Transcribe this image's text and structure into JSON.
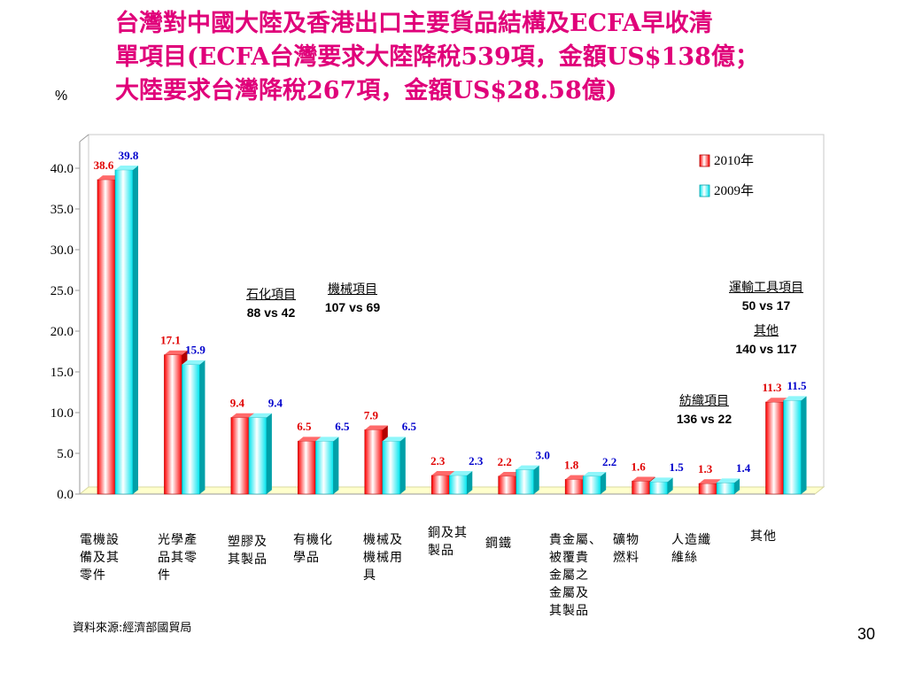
{
  "title_lines": [
    "台灣對中國大陸及香港出口主要貨品結構及ECFA早收清",
    "單項目(ECFA台灣要求大陸降稅539項，金額US$138億；",
    "大陸要求台灣降稅267項，金額US$28.58億)"
  ],
  "unit_label": "%",
  "source": "資料來源:經濟部國貿局",
  "page_number": "30",
  "annotations": [
    {
      "label": "石化項目",
      "value": "88 vs 42"
    },
    {
      "label": "機械項目",
      "value": "107 vs 69"
    },
    {
      "label": "運輸工具項目",
      "value": "50 vs 17"
    },
    {
      "label": "其他",
      "value": "140 vs 117"
    },
    {
      "label": "紡織項目",
      "value": "136 vs 22"
    }
  ],
  "colors": {
    "title": "#e0007a",
    "series_2010": "#ff0000",
    "series_2009": "#00e5ee",
    "label_2010": "#e00000",
    "label_2009": "#0000cc",
    "floor": "#ffffcc"
  },
  "chart_data": {
    "type": "bar",
    "categories": [
      "電機設\n備及其\n零件",
      "光學產\n品其零\n件",
      "塑膠及\n其製品",
      "有機化\n學品",
      "機械及\n機械用\n具",
      "銅及其\n製品",
      "鋼鐵",
      "貴金屬、\n被覆貴\n金屬之\n金屬及\n其製品",
      "礦物\n燃料",
      "人造纖\n維絲",
      "其他"
    ],
    "series": [
      {
        "name": "2010年",
        "values": [
          38.6,
          17.1,
          9.4,
          6.5,
          7.9,
          2.3,
          2.2,
          1.8,
          1.6,
          1.3,
          11.3
        ]
      },
      {
        "name": "2009年",
        "values": [
          39.8,
          15.9,
          9.4,
          6.5,
          6.5,
          2.3,
          3.0,
          2.2,
          1.5,
          1.4,
          11.5
        ]
      }
    ],
    "data_labels": [
      [
        "38.6",
        "17.1",
        "9.4",
        "6.5",
        "7.9",
        "2.3",
        "2.2",
        "1.8",
        "1.6",
        "1.3",
        "11.3"
      ],
      [
        "39.8",
        "15.9",
        "9.4",
        "6.5",
        "6.5",
        "2.3",
        "3.0",
        "2.2",
        "1.5",
        "1.4",
        "11.5"
      ]
    ],
    "y_ticks": [
      "0.0",
      "5.0",
      "10.0",
      "15.0",
      "20.0",
      "25.0",
      "30.0",
      "35.0",
      "40.0"
    ],
    "ylim": [
      0,
      40
    ],
    "grid": false,
    "legend_position": "top-right",
    "style": "3d-cylinder-bars"
  }
}
